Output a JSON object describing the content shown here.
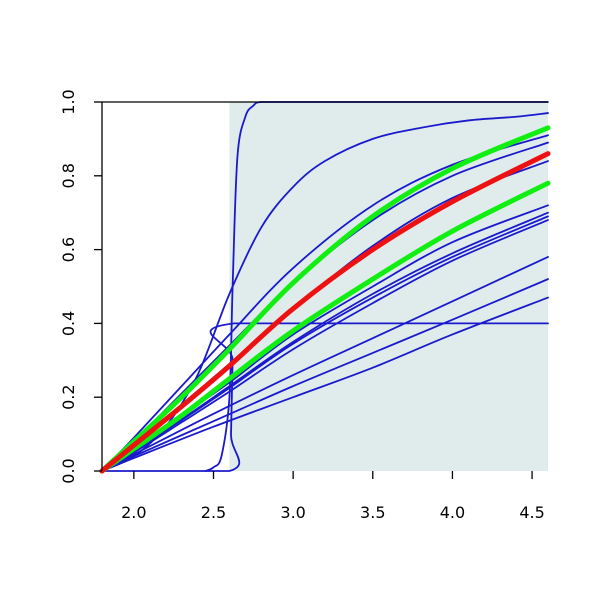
{
  "chart_data": {
    "type": "line",
    "title": "",
    "xlabel": "",
    "ylabel": "",
    "xlim": [
      1.8,
      4.6
    ],
    "ylim": [
      0,
      1
    ],
    "xticks": [
      2.0,
      2.5,
      3.0,
      3.5,
      4.0,
      4.5
    ],
    "xtick_labels": [
      "2.0",
      "2.5",
      "3.0",
      "3.5",
      "4.0",
      "4.5"
    ],
    "yticks": [
      0.0,
      0.2,
      0.4,
      0.6,
      0.8,
      1.0
    ],
    "ytick_labels": [
      "0.0",
      "0.2",
      "0.4",
      "0.6",
      "0.8",
      "1.0"
    ],
    "grid": false,
    "legend": "none",
    "shaded_region": {
      "x": [
        2.6,
        4.6
      ],
      "color": "#e0ecec"
    },
    "colors": {
      "curves": "#1a1acc",
      "highlight": "#ee1111",
      "bounds": "#11ee11"
    },
    "series": [
      {
        "role": "curve",
        "x": [
          2.45,
          2.5,
          2.55,
          2.6,
          2.62,
          2.65,
          2.7,
          2.75,
          2.8,
          3.0,
          4.6
        ],
        "y": [
          0.0,
          0.01,
          0.04,
          0.2,
          0.5,
          0.85,
          0.96,
          0.99,
          1.0,
          1.0,
          1.0
        ]
      },
      {
        "role": "curve",
        "x": [
          1.8,
          2.6,
          2.61,
          2.62,
          2.63,
          4.6
        ],
        "y": [
          0.0,
          0.0,
          0.1,
          0.3,
          0.4,
          0.4
        ]
      },
      {
        "role": "curve",
        "x": [
          1.8,
          2.0,
          2.2,
          2.4,
          2.6,
          2.8,
          3.0,
          3.2,
          3.5,
          3.8,
          4.1,
          4.4,
          4.6
        ],
        "y": [
          0.0,
          0.04,
          0.12,
          0.26,
          0.48,
          0.66,
          0.77,
          0.84,
          0.9,
          0.93,
          0.95,
          0.96,
          0.97
        ]
      },
      {
        "role": "curve",
        "x": [
          1.8,
          2.0,
          2.3,
          2.6,
          3.0,
          3.5,
          4.0,
          4.6
        ],
        "y": [
          0.0,
          0.09,
          0.23,
          0.37,
          0.55,
          0.72,
          0.83,
          0.91
        ]
      },
      {
        "role": "curve",
        "x": [
          1.8,
          2.0,
          2.3,
          2.6,
          3.0,
          3.5,
          4.0,
          4.6
        ],
        "y": [
          0.0,
          0.08,
          0.21,
          0.34,
          0.51,
          0.68,
          0.8,
          0.89
        ]
      },
      {
        "role": "curve",
        "x": [
          1.8,
          2.0,
          2.3,
          2.6,
          3.0,
          3.5,
          4.0,
          4.6
        ],
        "y": [
          0.0,
          0.07,
          0.18,
          0.29,
          0.44,
          0.61,
          0.74,
          0.84
        ]
      },
      {
        "role": "curve",
        "x": [
          1.8,
          2.0,
          2.3,
          2.6,
          3.0,
          3.5,
          4.0,
          4.6
        ],
        "y": [
          0.0,
          0.06,
          0.15,
          0.24,
          0.37,
          0.5,
          0.62,
          0.72
        ]
      },
      {
        "role": "curve",
        "x": [
          1.8,
          2.0,
          2.3,
          2.6,
          3.0,
          3.5,
          4.0,
          4.6
        ],
        "y": [
          0.0,
          0.055,
          0.14,
          0.23,
          0.35,
          0.48,
          0.59,
          0.7
        ]
      },
      {
        "role": "curve",
        "x": [
          1.8,
          2.0,
          2.3,
          2.6,
          3.0,
          3.5,
          4.0,
          4.6
        ],
        "y": [
          0.0,
          0.055,
          0.138,
          0.225,
          0.345,
          0.47,
          0.58,
          0.69
        ]
      },
      {
        "role": "curve",
        "x": [
          1.8,
          2.0,
          2.3,
          2.6,
          3.0,
          3.5,
          4.0,
          4.6
        ],
        "y": [
          0.0,
          0.05,
          0.132,
          0.215,
          0.33,
          0.455,
          0.57,
          0.68
        ]
      },
      {
        "role": "curve",
        "x": [
          1.8,
          2.0,
          2.5,
          3.0,
          3.5,
          4.0,
          4.6
        ],
        "y": [
          0.0,
          0.045,
          0.155,
          0.26,
          0.36,
          0.46,
          0.58
        ]
      },
      {
        "role": "curve",
        "x": [
          1.8,
          2.0,
          2.5,
          3.0,
          3.5,
          4.0,
          4.6
        ],
        "y": [
          0.0,
          0.04,
          0.135,
          0.23,
          0.32,
          0.41,
          0.52
        ]
      },
      {
        "role": "curve",
        "x": [
          1.8,
          2.0,
          2.5,
          3.0,
          3.5,
          4.0,
          4.6
        ],
        "y": [
          0.0,
          0.035,
          0.12,
          0.2,
          0.28,
          0.37,
          0.47
        ]
      },
      {
        "role": "bound",
        "x": [
          1.8,
          2.0,
          2.3,
          2.6,
          3.0,
          3.5,
          4.0,
          4.6
        ],
        "y": [
          0.0,
          0.08,
          0.2,
          0.33,
          0.51,
          0.69,
          0.82,
          0.93
        ]
      },
      {
        "role": "bound",
        "x": [
          1.8,
          2.0,
          2.3,
          2.6,
          3.0,
          3.5,
          4.0,
          4.6
        ],
        "y": [
          0.0,
          0.06,
          0.15,
          0.25,
          0.38,
          0.52,
          0.65,
          0.78
        ]
      },
      {
        "role": "highlight",
        "x": [
          1.8,
          2.0,
          2.3,
          2.6,
          3.0,
          3.5,
          4.0,
          4.6
        ],
        "y": [
          0.0,
          0.07,
          0.175,
          0.285,
          0.44,
          0.6,
          0.73,
          0.86
        ]
      }
    ]
  }
}
